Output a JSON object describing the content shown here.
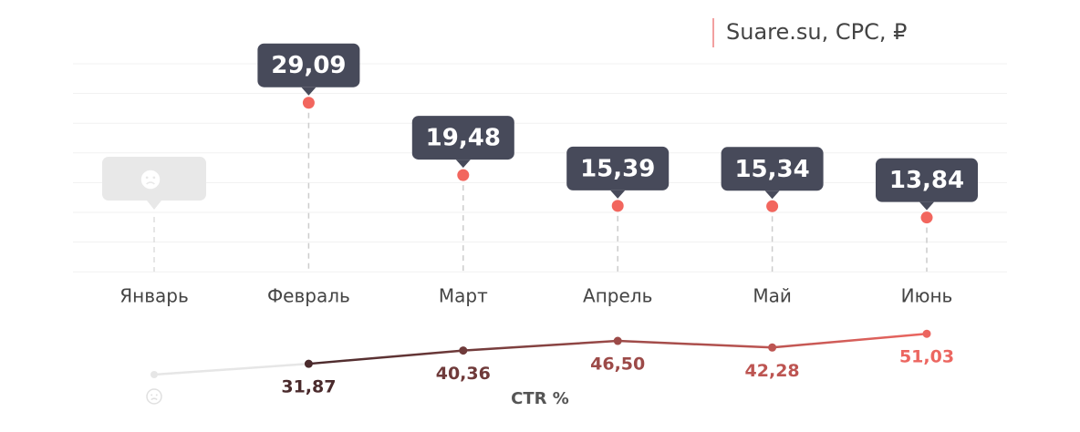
{
  "chart_data": [
    {
      "type": "tooltip",
      "title": "Suare.su, CPC, ₽",
      "categories": [
        "Январь",
        "Февраль",
        "Март",
        "Апрель",
        "Май",
        "Июнь"
      ],
      "values": [
        null,
        29.09,
        19.48,
        15.39,
        15.34,
        13.84
      ],
      "value_labels": [
        null,
        "29,09",
        "19,48",
        "15,39",
        "15,34",
        "13,84"
      ],
      "color": "#f2665e",
      "label_color": "#474a5a"
    },
    {
      "type": "line",
      "title": "CTR %",
      "values": [
        null,
        31.87,
        40.36,
        46.5,
        42.28,
        51.03
      ],
      "value_labels": [
        null,
        "31,87",
        "40,36",
        "46,50",
        "42,28",
        "51,03"
      ],
      "colors": [
        null,
        "#4a2a2c",
        "#6f3a3a",
        "#9c4a48",
        "#bd5552",
        "#ec6660"
      ]
    }
  ]
}
